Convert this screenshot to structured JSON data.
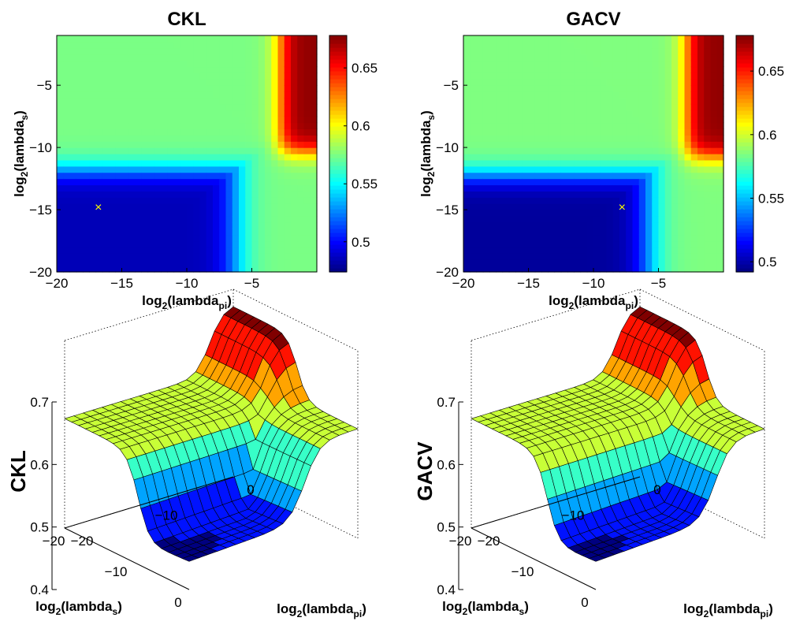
{
  "chart_data": [
    {
      "type": "heatmap",
      "title": "CKL",
      "xlabel": {
        "base": "log",
        "sub": "2",
        "mid": "(lambda",
        "sub2": "pi",
        "end": ")"
      },
      "ylabel": {
        "base": "log",
        "sub": "2",
        "mid": "(lambda",
        "sub2": "s",
        "end": ")"
      },
      "xlim": [
        -20,
        0
      ],
      "ylim": [
        -20,
        -1
      ],
      "xticks": [
        -20,
        -15,
        -10,
        -5
      ],
      "xticklabels": [
        "−20",
        "−15",
        "−10",
        "−5"
      ],
      "yticks": [
        -5,
        -10,
        -15,
        -20
      ],
      "yticklabels": [
        "−5",
        "−10",
        "−15",
        "−20"
      ],
      "colorbar": {
        "range": [
          0.474,
          0.678
        ],
        "ticks": [
          0.5,
          0.55,
          0.6,
          0.65
        ],
        "ticklabels": [
          "0.5",
          "0.55",
          "0.6",
          "0.65"
        ],
        "colormap": "jet"
      },
      "minimum_marker": {
        "x": -16.8,
        "y": -14.8,
        "symbol": "×",
        "color": "#ffff00"
      },
      "model": {
        "low": 0.485,
        "plateau": 0.575,
        "high": 0.675,
        "ytrans": -11.8,
        "xtrans": -6.3,
        "xhigh": -2.8
      }
    },
    {
      "type": "heatmap",
      "title": "GACV",
      "xlabel": {
        "base": "log",
        "sub": "2",
        "mid": "(lambda",
        "sub2": "pi",
        "end": ")"
      },
      "ylabel": {
        "base": "log",
        "sub": "2",
        "mid": "(lambda",
        "sub2": "s",
        "end": ")"
      },
      "xlim": [
        -20,
        0
      ],
      "ylim": [
        -20,
        -1
      ],
      "xticks": [
        -20,
        -15,
        -10,
        -5
      ],
      "xticklabels": [
        "−20",
        "−15",
        "−10",
        "−5"
      ],
      "yticks": [
        -5,
        -10,
        -15,
        -20
      ],
      "yticklabels": [
        "−5",
        "−10",
        "−15",
        "−20"
      ],
      "colorbar": {
        "range": [
          0.492,
          0.678
        ],
        "ticks": [
          0.5,
          0.55,
          0.6,
          0.65
        ],
        "ticklabels": [
          "0.5",
          "0.55",
          "0.6",
          "0.65"
        ],
        "colormap": "jet"
      },
      "minimum_marker": {
        "x": -7.8,
        "y": -14.8,
        "symbol": "×",
        "color": "#ffff00"
      },
      "model": {
        "low": 0.497,
        "plateau": 0.585,
        "high": 0.675,
        "ytrans": -12.2,
        "xtrans": -5.8,
        "xhigh": -2.8
      }
    },
    {
      "type": "surface",
      "zlabel": "CKL",
      "xlabel": {
        "base": "log",
        "sub": "2",
        "mid": "(lambda",
        "sub2": "pi",
        "end": ")"
      },
      "ylabel": {
        "base": "log",
        "sub": "2",
        "mid": "(lambda",
        "sub2": "s",
        "end": ")"
      },
      "zlim": [
        0.4,
        0.7
      ],
      "zticklabels": [
        "0.4",
        "0.5",
        "0.6",
        "0.7"
      ],
      "xticklabels": [
        "−20",
        "−10",
        "0"
      ],
      "yticklabels": [
        "0",
        "−10",
        "−20"
      ],
      "colormap": "jet"
    },
    {
      "type": "surface",
      "zlabel": "GACV",
      "xlabel": {
        "base": "log",
        "sub": "2",
        "mid": "(lambda",
        "sub2": "pi",
        "end": ")"
      },
      "ylabel": {
        "base": "log",
        "sub": "2",
        "mid": "(lambda",
        "sub2": "s",
        "end": ")"
      },
      "zlim": [
        0.4,
        0.7
      ],
      "zticklabels": [
        "0.4",
        "0.5",
        "0.6",
        "0.7"
      ],
      "xticklabels": [
        "−20",
        "−10",
        "0"
      ],
      "yticklabels": [
        "0",
        "−10",
        "−20"
      ],
      "colormap": "jet"
    }
  ]
}
